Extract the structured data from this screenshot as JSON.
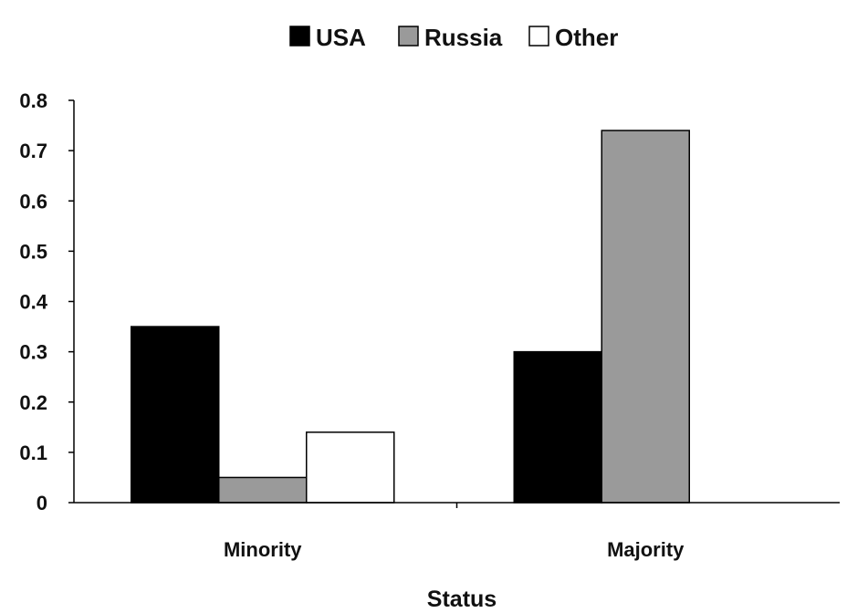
{
  "chart_data": {
    "type": "bar",
    "title": "",
    "xlabel": "Status",
    "ylabel": "",
    "categories": [
      "Minority",
      "Majority"
    ],
    "ylim": [
      0,
      0.8
    ],
    "yticks": [
      0,
      0.1,
      0.2,
      0.3,
      0.4,
      0.5,
      0.6,
      0.7,
      0.8
    ],
    "ytick_labels": [
      "0",
      "0.1",
      "0.2",
      "0.3",
      "0.4",
      "0.5",
      "0.6",
      "0.7",
      "0.8"
    ],
    "legend_position": "top",
    "grid": false,
    "series": [
      {
        "name": "USA",
        "color": "#000000",
        "values": [
          0.35,
          0.3
        ]
      },
      {
        "name": "Russia",
        "color": "#9a9a9a",
        "values": [
          0.05,
          0.74
        ]
      },
      {
        "name": "Other",
        "color": "#ffffff",
        "values": [
          0.14,
          0.0
        ]
      }
    ]
  }
}
